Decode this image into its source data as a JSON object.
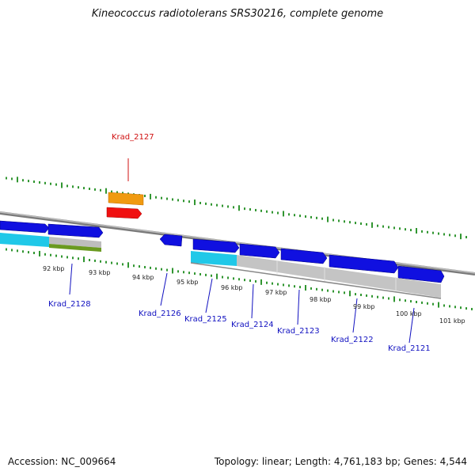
{
  "title": "Kineococcus radiotolerans SRS30216, complete genome",
  "footer": {
    "accession": "Accession: NC_009664",
    "summary": "Topology: linear; Length: 4,761,183 bp; Genes: 4,544"
  },
  "colors": {
    "tick": "#1a8a1a",
    "backbone": "#7a7a7a",
    "gene_fwd": "#1010e0",
    "label_default": "#1010c0",
    "highlight_label": "#d01010",
    "orange": "#f09a10",
    "red": "#f01010",
    "cyan": "#20c8e8",
    "olive": "#6a9a20",
    "gray_track": "#bdbdbd"
  },
  "scale": {
    "ticks": [
      "92 kbp",
      "93 kbp",
      "94 kbp",
      "95 kbp",
      "96 kbp",
      "97 kbp",
      "98 kbp",
      "99 kbp",
      "100 kbp",
      "101 kbp"
    ]
  },
  "genes": [
    {
      "id": "Krad_2128",
      "highlight": false
    },
    {
      "id": "Krad_2127",
      "highlight": true
    },
    {
      "id": "Krad_2126",
      "highlight": false
    },
    {
      "id": "Krad_2125",
      "highlight": false
    },
    {
      "id": "Krad_2124",
      "highlight": false
    },
    {
      "id": "Krad_2123",
      "highlight": false
    },
    {
      "id": "Krad_2122",
      "highlight": false
    },
    {
      "id": "Krad_2121",
      "highlight": false
    }
  ]
}
